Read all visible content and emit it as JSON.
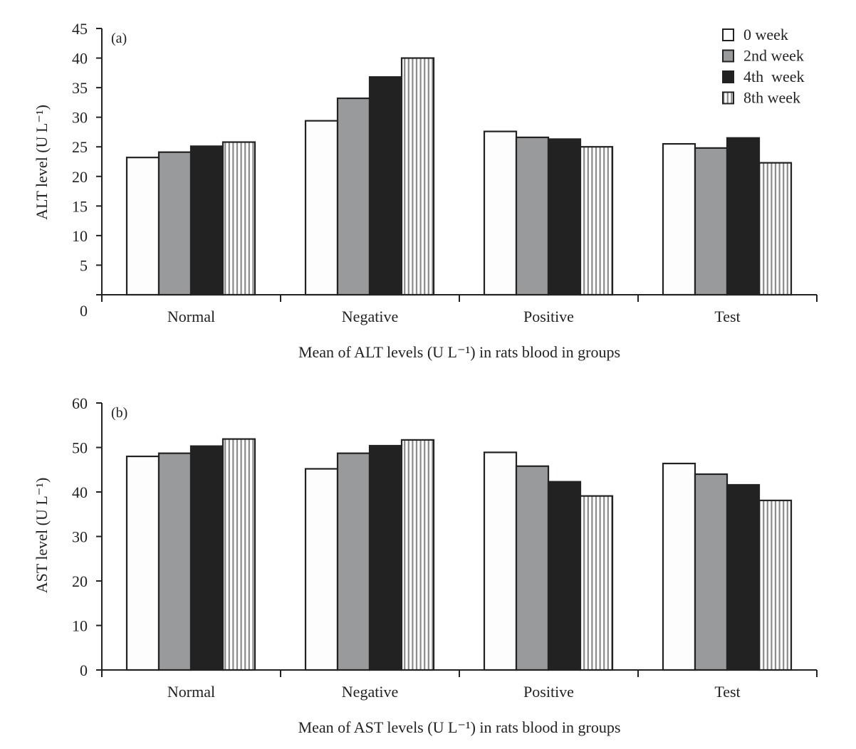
{
  "chart_data": [
    {
      "type": "bar",
      "panel_label": "(a)",
      "ylabel": "ALT level (U L⁻¹)",
      "xlabel": "Mean of ALT levels (U L⁻¹) in rats blood in groups",
      "categories": [
        "Normal",
        "Negative",
        "Positive",
        "Test"
      ],
      "ylim": [
        0,
        45
      ],
      "yticks": [
        0,
        5,
        10,
        15,
        20,
        25,
        30,
        35,
        40,
        45
      ],
      "legend_position": "top-right",
      "grid": false,
      "series": [
        {
          "name": "0 week",
          "values": [
            23.2,
            29.4,
            27.6,
            25.5
          ]
        },
        {
          "name": "2nd week",
          "values": [
            24.1,
            33.2,
            26.6,
            24.8
          ]
        },
        {
          "name": "4th  week",
          "values": [
            25.1,
            36.8,
            26.3,
            26.5
          ]
        },
        {
          "name": "8th week",
          "values": [
            25.8,
            40.0,
            25.0,
            22.3
          ]
        }
      ]
    },
    {
      "type": "bar",
      "panel_label": "(b)",
      "ylabel": "AST level (U L⁻¹)",
      "xlabel": "Mean of AST levels (U L⁻¹) in rats blood in groups",
      "categories": [
        "Normal",
        "Negative",
        "Positive",
        "Test"
      ],
      "ylim": [
        0,
        60
      ],
      "yticks": [
        0,
        10,
        20,
        30,
        40,
        50,
        60
      ],
      "grid": false,
      "series": [
        {
          "name": "0 week",
          "values": [
            48.0,
            45.2,
            48.9,
            46.4
          ]
        },
        {
          "name": "2nd week",
          "values": [
            48.7,
            48.7,
            45.8,
            44.0
          ]
        },
        {
          "name": "4th  week",
          "values": [
            50.3,
            50.4,
            42.3,
            41.6
          ]
        },
        {
          "name": "8th week",
          "values": [
            51.9,
            51.7,
            39.1,
            38.1
          ]
        }
      ]
    }
  ],
  "series_styles": [
    {
      "fill": "#fdfdfd",
      "pattern": "solid"
    },
    {
      "fill": "#999a9c",
      "pattern": "solid"
    },
    {
      "fill": "#222222",
      "pattern": "solid"
    },
    {
      "fill": "#ffffff",
      "pattern": "vertical-stripes",
      "stripe_color": "#8a8a8a"
    }
  ]
}
